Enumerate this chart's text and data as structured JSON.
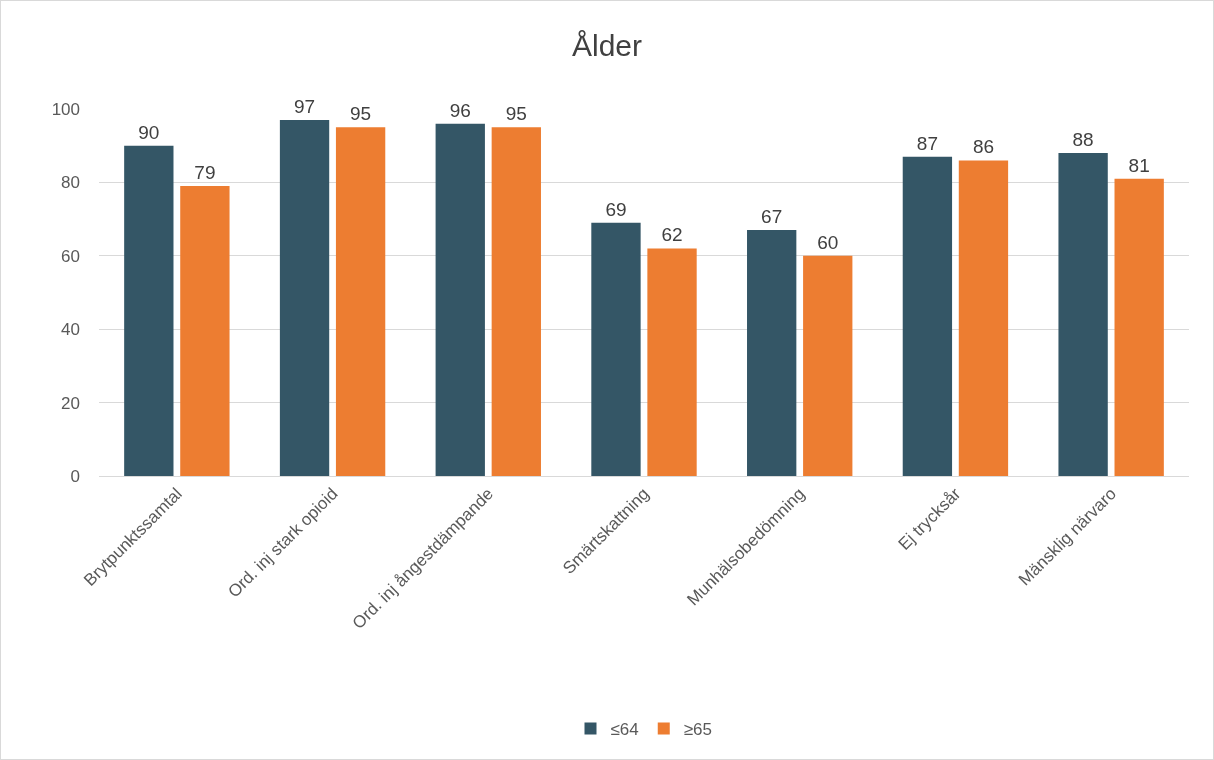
{
  "chart_data": {
    "type": "bar",
    "title": "Ålder",
    "categories": [
      "Brytpunktssamtal",
      "Ord. inj stark opioid",
      "Ord. inj ångestdämpande",
      "Smärtskattning",
      "Munhälsobedömning",
      "Ej trycksår",
      "Mänsklig närvaro"
    ],
    "series": [
      {
        "name": "≤64",
        "color": "#345666",
        "values": [
          90,
          97,
          96,
          69,
          67,
          87,
          88
        ]
      },
      {
        "name": "≥65",
        "color": "#ed7d31",
        "values": [
          79,
          95,
          95,
          62,
          60,
          86,
          81
        ]
      }
    ],
    "ylim": [
      0,
      100
    ],
    "yticks": [
      0,
      20,
      40,
      60,
      80,
      100
    ],
    "grid": "y",
    "legend": "bottom",
    "data_labels": true
  }
}
